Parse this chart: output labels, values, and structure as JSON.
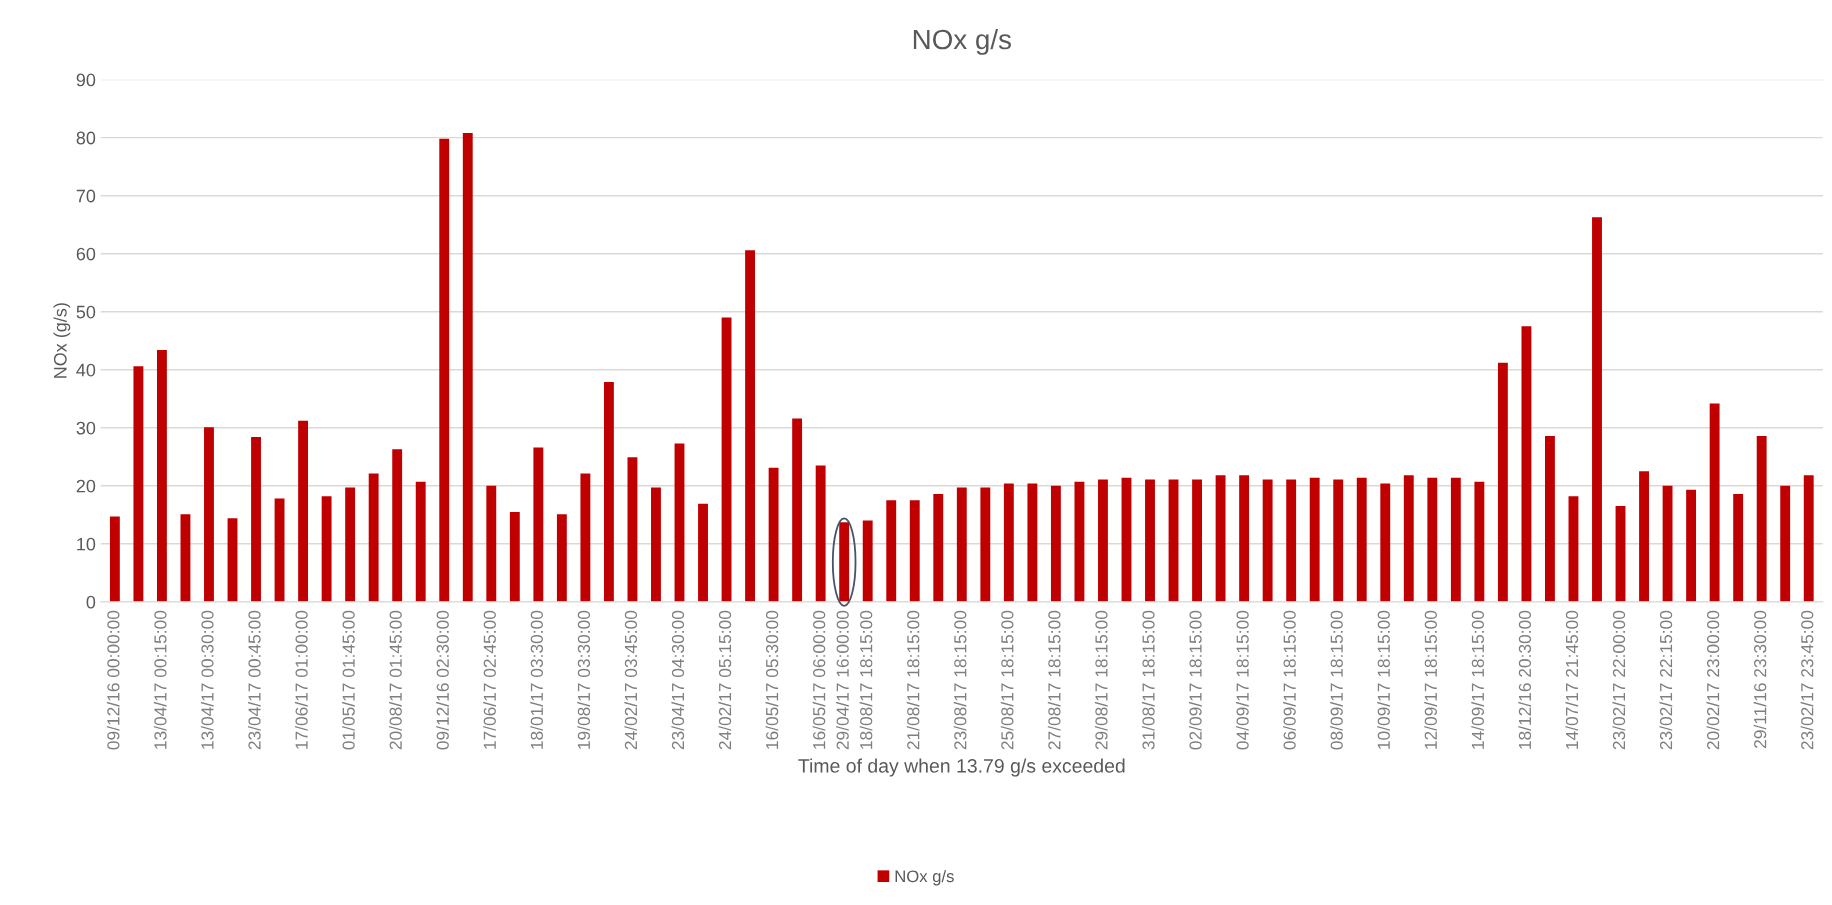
{
  "chart_data": {
    "type": "bar",
    "title": "NOx g/s",
    "xlabel": "Time of day when 13.79 g/s exceeded",
    "ylabel": "NOx (g/s)",
    "categories": [
      "09/12/16 00:00:00",
      null,
      "13/04/17 00:15:00",
      null,
      "13/04/17 00:30:00",
      null,
      "23/04/17 00:45:00",
      null,
      "17/06/17 01:00:00",
      null,
      "01/05/17 01:45:00",
      null,
      "20/08/17 01:45:00",
      null,
      "09/12/16 02:30:00",
      null,
      "17/06/17 02:45:00",
      null,
      "18/01/17 03:30:00",
      null,
      "19/08/17 03:30:00",
      null,
      "24/02/17 03:45:00",
      null,
      "23/04/17 04:30:00",
      null,
      "24/02/17 05:15:00",
      null,
      "16/05/17 05:30:00",
      null,
      "16/05/17 06:00:00",
      "29/04/17 16:00:00",
      "18/08/17 18:15:00",
      null,
      "21/08/17 18:15:00",
      null,
      "23/08/17 18:15:00",
      null,
      "25/08/17 18:15:00",
      null,
      "27/08/17 18:15:00",
      null,
      "29/08/17 18:15:00",
      null,
      "31/08/17 18:15:00",
      null,
      "02/09/17 18:15:00",
      null,
      "04/09/17 18:15:00",
      null,
      "06/09/17 18:15:00",
      null,
      "08/09/17 18:15:00",
      null,
      "10/09/17 18:15:00",
      null,
      "12/09/17 18:15:00",
      null,
      "14/09/17 18:15:00",
      null,
      "18/12/16 20:30:00",
      null,
      "14/07/17 21:45:00",
      null,
      "23/02/17 22:00:00",
      null,
      "23/02/17 22:15:00",
      null,
      "20/02/17 23:00:00",
      null,
      "29/11/16 23:30:00",
      null,
      "23/02/17 23:45:00"
    ],
    "series": [
      {
        "name": "NOx g/s",
        "color": "#c00000",
        "values": [
          14.7,
          40.6,
          43.4,
          15.1,
          30.1,
          14.4,
          28.4,
          17.8,
          31.2,
          18.2,
          19.7,
          22.1,
          26.3,
          20.7,
          79.8,
          80.8,
          20.0,
          15.5,
          26.6,
          15.1,
          22.1,
          37.9,
          24.9,
          19.7,
          27.3,
          16.9,
          49.0,
          60.6,
          23.1,
          31.6,
          23.5,
          13.7,
          14.0,
          17.5,
          17.5,
          18.6,
          19.7,
          19.7,
          20.4,
          20.4,
          20.0,
          20.7,
          21.1,
          21.4,
          21.1,
          21.1,
          21.1,
          21.8,
          21.8,
          21.1,
          21.1,
          21.4,
          21.1,
          21.4,
          20.4,
          21.8,
          21.4,
          21.4,
          20.7,
          41.2,
          47.5,
          28.6,
          18.2,
          66.3,
          16.5,
          22.5,
          20.0,
          19.3,
          34.2,
          18.6,
          28.6,
          20.0,
          21.8
        ]
      }
    ],
    "ylim": [
      0,
      90
    ],
    "yticks": [
      0,
      10,
      20,
      30,
      40,
      50,
      60,
      70,
      80,
      90
    ],
    "grid": "y",
    "legend": "bottom"
  }
}
